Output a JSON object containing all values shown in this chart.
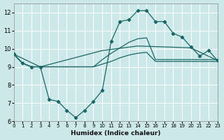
{
  "xlabel": "Humidex (Indice chaleur)",
  "xlim": [
    0,
    23
  ],
  "ylim": [
    6,
    12.5
  ],
  "yticks": [
    6,
    7,
    8,
    9,
    10,
    11,
    12
  ],
  "xticks": [
    0,
    1,
    2,
    3,
    4,
    5,
    6,
    7,
    8,
    9,
    10,
    11,
    12,
    13,
    14,
    15,
    16,
    17,
    18,
    19,
    20,
    21,
    22,
    23
  ],
  "bg_color": "#cce8e8",
  "line_color": "#1a6666",
  "grid_color": "#ffffff",
  "line_main_x": [
    0,
    1,
    2,
    3,
    4,
    5,
    6,
    7,
    8,
    9,
    10,
    11,
    12,
    13,
    14,
    15,
    16,
    17,
    18,
    19,
    20,
    21,
    22,
    23
  ],
  "line_main_y": [
    9.7,
    9.2,
    9.0,
    9.0,
    7.2,
    7.1,
    6.6,
    6.2,
    6.6,
    7.1,
    7.7,
    10.4,
    11.5,
    11.6,
    12.1,
    12.1,
    11.5,
    11.5,
    10.85,
    10.65,
    10.1,
    9.6,
    9.9,
    9.35
  ],
  "line_a_x": [
    0,
    1,
    2,
    3,
    4,
    5,
    6,
    7,
    8,
    9,
    10,
    11,
    12,
    13,
    14,
    15,
    16,
    17,
    18,
    19,
    20,
    21,
    22,
    23
  ],
  "line_a_y": [
    9.7,
    9.2,
    9.0,
    9.0,
    9.0,
    9.0,
    9.0,
    9.0,
    9.0,
    9.0,
    9.15,
    9.3,
    9.5,
    9.65,
    9.75,
    9.8,
    9.3,
    9.3,
    9.3,
    9.3,
    9.3,
    9.3,
    9.3,
    9.3
  ],
  "line_b_x": [
    0,
    1,
    2,
    3,
    4,
    5,
    6,
    7,
    8,
    9,
    10,
    11,
    12,
    13,
    14,
    15,
    16,
    17,
    18,
    19,
    20,
    21,
    22,
    23
  ],
  "line_b_y": [
    9.7,
    9.2,
    9.0,
    9.0,
    9.0,
    9.0,
    9.0,
    9.0,
    9.0,
    9.0,
    9.4,
    9.75,
    10.05,
    10.35,
    10.55,
    10.6,
    9.4,
    9.4,
    9.4,
    9.4,
    9.4,
    9.4,
    9.4,
    9.4
  ],
  "line_c_x": [
    0,
    3,
    10,
    14,
    20,
    23
  ],
  "line_c_y": [
    9.7,
    9.0,
    9.9,
    10.15,
    10.05,
    9.35
  ]
}
